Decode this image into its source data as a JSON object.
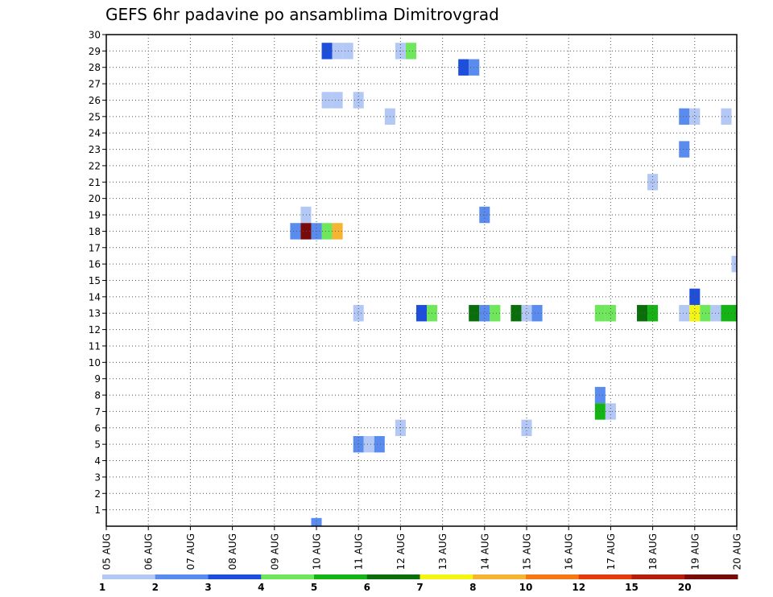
{
  "chart_data": {
    "type": "heatmap",
    "title": "GEFS 6hr padavine po ansamblima Dimitrovgrad",
    "xlabel": "",
    "ylabel": "",
    "x_ticks": [
      "05 AUG",
      "06 AUG",
      "07 AUG",
      "08 AUG",
      "09 AUG",
      "10 AUG",
      "11 AUG",
      "12 AUG",
      "13 AUG",
      "14 AUG",
      "15 AUG",
      "16 AUG",
      "17 AUG",
      "18 AUG",
      "19 AUG",
      "20 AUG"
    ],
    "y_ticks": [
      "1",
      "2",
      "3",
      "4",
      "5",
      "6",
      "7",
      "8",
      "9",
      "10",
      "11",
      "12",
      "13",
      "14",
      "15",
      "16",
      "17",
      "18",
      "19",
      "20",
      "21",
      "22",
      "23",
      "24",
      "25",
      "26",
      "27",
      "28",
      "29",
      "30"
    ],
    "xlim_days": [
      0,
      15
    ],
    "ylim": [
      0,
      30
    ],
    "grid": true,
    "colorbar": {
      "levels": [
        "1",
        "2",
        "3",
        "4",
        "5",
        "6",
        "7",
        "8",
        "10",
        "12",
        "15",
        "20"
      ],
      "colors": [
        "#b4c8f5",
        "#5a8cf0",
        "#1e4fdc",
        "#6ee85a",
        "#14b414",
        "#0a6e0a",
        "#f5f514",
        "#f5b432",
        "#f57814",
        "#e13c0a",
        "#b41e0a",
        "#780a0a"
      ]
    },
    "cells": [
      {
        "day": 5.0,
        "member": 0,
        "bin": 2
      },
      {
        "day": 5.25,
        "member": 29,
        "bin": 3
      },
      {
        "day": 5.5,
        "member": 29,
        "bin": 1
      },
      {
        "day": 5.75,
        "member": 29,
        "bin": 1
      },
      {
        "day": 7.0,
        "member": 29,
        "bin": 1
      },
      {
        "day": 7.25,
        "member": 29,
        "bin": 4
      },
      {
        "day": 8.5,
        "member": 28,
        "bin": 3
      },
      {
        "day": 8.75,
        "member": 28,
        "bin": 2
      },
      {
        "day": 5.25,
        "member": 26,
        "bin": 1
      },
      {
        "day": 5.5,
        "member": 26,
        "bin": 1
      },
      {
        "day": 6.0,
        "member": 26,
        "bin": 1
      },
      {
        "day": 6.75,
        "member": 25,
        "bin": 1
      },
      {
        "day": 13.75,
        "member": 25,
        "bin": 2
      },
      {
        "day": 14.0,
        "member": 25,
        "bin": 1
      },
      {
        "day": 14.75,
        "member": 25,
        "bin": 1
      },
      {
        "day": 13.75,
        "member": 23,
        "bin": 2
      },
      {
        "day": 13.0,
        "member": 21,
        "bin": 1
      },
      {
        "day": 4.75,
        "member": 19,
        "bin": 1
      },
      {
        "day": 9.0,
        "member": 19,
        "bin": 2
      },
      {
        "day": 4.5,
        "member": 18,
        "bin": 2
      },
      {
        "day": 4.75,
        "member": 18,
        "bin": 12
      },
      {
        "day": 5.0,
        "member": 18,
        "bin": 2
      },
      {
        "day": 5.25,
        "member": 18,
        "bin": 4
      },
      {
        "day": 5.5,
        "member": 18,
        "bin": 8
      },
      {
        "day": 15.0,
        "member": 16,
        "bin": 1
      },
      {
        "day": 14.0,
        "member": 14,
        "bin": 3
      },
      {
        "day": 6.0,
        "member": 13,
        "bin": 1
      },
      {
        "day": 7.5,
        "member": 13,
        "bin": 3
      },
      {
        "day": 7.75,
        "member": 13,
        "bin": 4
      },
      {
        "day": 8.75,
        "member": 13,
        "bin": 6
      },
      {
        "day": 9.0,
        "member": 13,
        "bin": 2
      },
      {
        "day": 9.25,
        "member": 13,
        "bin": 4
      },
      {
        "day": 9.75,
        "member": 13,
        "bin": 6
      },
      {
        "day": 10.0,
        "member": 13,
        "bin": 1
      },
      {
        "day": 10.25,
        "member": 13,
        "bin": 2
      },
      {
        "day": 11.75,
        "member": 13,
        "bin": 4
      },
      {
        "day": 12.0,
        "member": 13,
        "bin": 4
      },
      {
        "day": 12.75,
        "member": 13,
        "bin": 6
      },
      {
        "day": 13.0,
        "member": 13,
        "bin": 5
      },
      {
        "day": 13.75,
        "member": 13,
        "bin": 1
      },
      {
        "day": 14.0,
        "member": 13,
        "bin": 7
      },
      {
        "day": 14.25,
        "member": 13,
        "bin": 4
      },
      {
        "day": 14.5,
        "member": 13,
        "bin": 1
      },
      {
        "day": 14.75,
        "member": 13,
        "bin": 5
      },
      {
        "day": 15.0,
        "member": 13,
        "bin": 5
      },
      {
        "day": 11.75,
        "member": 8,
        "bin": 2
      },
      {
        "day": 11.75,
        "member": 7,
        "bin": 5
      },
      {
        "day": 12.0,
        "member": 7,
        "bin": 1
      },
      {
        "day": 7.0,
        "member": 6,
        "bin": 1
      },
      {
        "day": 10.0,
        "member": 6,
        "bin": 1
      },
      {
        "day": 6.0,
        "member": 5,
        "bin": 2
      },
      {
        "day": 6.25,
        "member": 5,
        "bin": 1
      },
      {
        "day": 6.5,
        "member": 5,
        "bin": 2
      }
    ]
  }
}
